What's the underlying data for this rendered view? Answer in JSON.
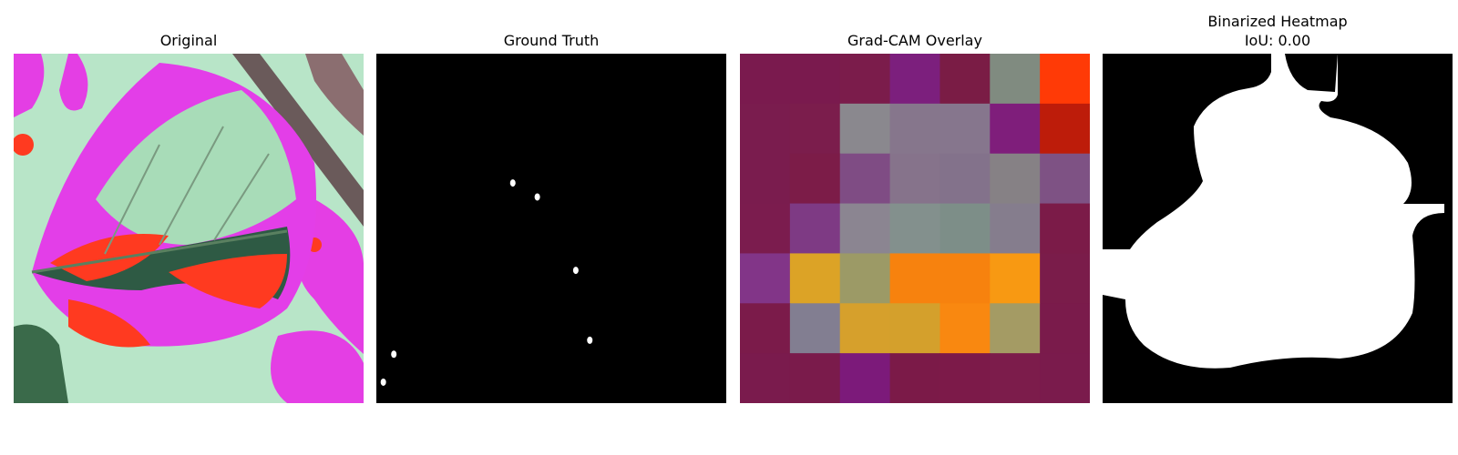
{
  "panels": [
    {
      "title": "Original"
    },
    {
      "title": "Ground Truth"
    },
    {
      "title": "Grad-CAM Overlay"
    },
    {
      "title": "Binarized Heatmap\nIoU: 0.00"
    }
  ],
  "heatmap": {
    "grid": [
      [
        "#7a1a4e",
        "#7a1a4e",
        "#7b1c4b",
        "#7c1f7d",
        "#7a1c45",
        "#808b80",
        "#ff3a06"
      ],
      [
        "#7a1c4e",
        "#7b1d4c",
        "#8a888e",
        "#86768c",
        "#86768d",
        "#7f1e7b",
        "#bd1c0a"
      ],
      [
        "#7a1c4e",
        "#7c1c48",
        "#7f4c84",
        "#86738b",
        "#83728b",
        "#868185",
        "#7e5284"
      ],
      [
        "#7b1c4e",
        "#7e3a84",
        "#8b8591",
        "#83908d",
        "#7d8e88",
        "#857d8d",
        "#7b1b48"
      ],
      [
        "#823588",
        "#dca326",
        "#9c9a66",
        "#f7820e",
        "#f7820e",
        "#f89912",
        "#7a1c4a"
      ],
      [
        "#7b1b4a",
        "#827e91",
        "#d6a02c",
        "#d4a02c",
        "#f98810",
        "#a49b64",
        "#7a1b4b"
      ],
      [
        "#7a1b4d",
        "#7a1b4b",
        "#7c1a7a",
        "#7b1a48",
        "#7c1a49",
        "#7c1c4b",
        "#7a1b4c"
      ]
    ]
  },
  "ground_truth": {
    "spots": [
      [
        0.39,
        0.37
      ],
      [
        0.46,
        0.41
      ],
      [
        0.57,
        0.62
      ],
      [
        0.61,
        0.82
      ],
      [
        0.05,
        0.86
      ],
      [
        0.02,
        0.94
      ]
    ]
  }
}
